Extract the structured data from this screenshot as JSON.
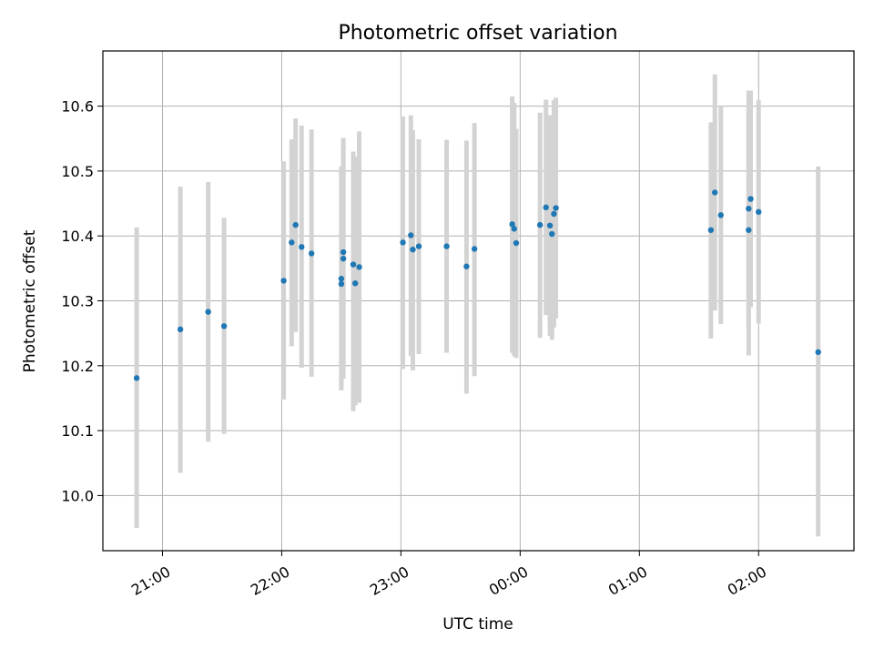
{
  "chart_data": {
    "type": "scatter",
    "title": "Photometric offset variation",
    "xlabel": "UTC time",
    "ylabel": "Photometric offset",
    "xlim": [
      "20:30",
      "26:48"
    ],
    "ylim": [
      9.915,
      10.685
    ],
    "grid": true,
    "x_ticks": [
      {
        "value": "21:00",
        "label": "21:00"
      },
      {
        "value": "22:00",
        "label": "22:00"
      },
      {
        "value": "23:00",
        "label": "23:00"
      },
      {
        "value": "24:00",
        "label": "00:00"
      },
      {
        "value": "25:00",
        "label": "01:00"
      },
      {
        "value": "26:00",
        "label": "02:00"
      }
    ],
    "y_ticks": [
      {
        "value": 10.0,
        "label": "10.0"
      },
      {
        "value": 10.1,
        "label": "10.1"
      },
      {
        "value": 10.2,
        "label": "10.2"
      },
      {
        "value": 10.3,
        "label": "10.3"
      },
      {
        "value": 10.4,
        "label": "10.4"
      },
      {
        "value": 10.5,
        "label": "10.5"
      },
      {
        "value": 10.6,
        "label": "10.6"
      }
    ],
    "colors": {
      "point": "#1f77b4",
      "errorbar": "#d3d3d3",
      "grid": "#b0b0b0"
    },
    "points": [
      {
        "t": "20:47",
        "y": 10.181,
        "lo": 9.95,
        "hi": 10.413
      },
      {
        "t": "21:09",
        "y": 10.256,
        "lo": 10.035,
        "hi": 10.476
      },
      {
        "t": "21:23",
        "y": 10.283,
        "lo": 10.083,
        "hi": 10.483
      },
      {
        "t": "21:31",
        "y": 10.261,
        "lo": 10.095,
        "hi": 10.428
      },
      {
        "t": "22:01",
        "y": 10.331,
        "lo": 10.148,
        "hi": 10.515
      },
      {
        "t": "22:05",
        "y": 10.39,
        "lo": 10.23,
        "hi": 10.549
      },
      {
        "t": "22:07",
        "y": 10.417,
        "lo": 10.252,
        "hi": 10.581
      },
      {
        "t": "22:10",
        "y": 10.383,
        "lo": 10.197,
        "hi": 10.57
      },
      {
        "t": "22:15",
        "y": 10.373,
        "lo": 10.183,
        "hi": 10.564
      },
      {
        "t": "22:30",
        "y": 10.326,
        "lo": 10.167,
        "hi": 10.507
      },
      {
        "t": "22:30",
        "y": 10.334,
        "lo": 10.162,
        "hi": 10.505
      },
      {
        "t": "22:31",
        "y": 10.375,
        "lo": 10.2,
        "hi": 10.551
      },
      {
        "t": "22:31",
        "y": 10.365,
        "lo": 10.18,
        "hi": 10.548
      },
      {
        "t": "22:36",
        "y": 10.356,
        "lo": 10.13,
        "hi": 10.53
      },
      {
        "t": "22:37",
        "y": 10.327,
        "lo": 10.139,
        "hi": 10.522
      },
      {
        "t": "22:39",
        "y": 10.352,
        "lo": 10.143,
        "hi": 10.561
      },
      {
        "t": "23:01",
        "y": 10.39,
        "lo": 10.195,
        "hi": 10.584
      },
      {
        "t": "23:05",
        "y": 10.401,
        "lo": 10.215,
        "hi": 10.586
      },
      {
        "t": "23:06",
        "y": 10.379,
        "lo": 10.193,
        "hi": 10.563
      },
      {
        "t": "23:09",
        "y": 10.384,
        "lo": 10.218,
        "hi": 10.549
      },
      {
        "t": "23:23",
        "y": 10.384,
        "lo": 10.22,
        "hi": 10.548
      },
      {
        "t": "23:33",
        "y": 10.353,
        "lo": 10.157,
        "hi": 10.547
      },
      {
        "t": "23:37",
        "y": 10.38,
        "lo": 10.184,
        "hi": 10.574
      },
      {
        "t": "23:56",
        "y": 10.418,
        "lo": 10.22,
        "hi": 10.615
      },
      {
        "t": "23:57",
        "y": 10.411,
        "lo": 10.215,
        "hi": 10.605
      },
      {
        "t": "23:58",
        "y": 10.389,
        "lo": 10.212,
        "hi": 10.565
      },
      {
        "t": "24:10",
        "y": 10.417,
        "lo": 10.243,
        "hi": 10.59
      },
      {
        "t": "24:13",
        "y": 10.444,
        "lo": 10.278,
        "hi": 10.61
      },
      {
        "t": "24:15",
        "y": 10.416,
        "lo": 10.246,
        "hi": 10.586
      },
      {
        "t": "24:16",
        "y": 10.403,
        "lo": 10.24,
        "hi": 10.57
      },
      {
        "t": "24:17",
        "y": 10.434,
        "lo": 10.259,
        "hi": 10.609
      },
      {
        "t": "24:18",
        "y": 10.443,
        "lo": 10.273,
        "hi": 10.613
      },
      {
        "t": "25:36",
        "y": 10.409,
        "lo": 10.242,
        "hi": 10.575
      },
      {
        "t": "25:38",
        "y": 10.467,
        "lo": 10.285,
        "hi": 10.649
      },
      {
        "t": "25:41",
        "y": 10.432,
        "lo": 10.264,
        "hi": 10.6
      },
      {
        "t": "25:55",
        "y": 10.409,
        "lo": 10.216,
        "hi": 10.602
      },
      {
        "t": "25:55",
        "y": 10.442,
        "lo": 10.26,
        "hi": 10.624
      },
      {
        "t": "25:56",
        "y": 10.457,
        "lo": 10.29,
        "hi": 10.624
      },
      {
        "t": "26:00",
        "y": 10.437,
        "lo": 10.265,
        "hi": 10.609
      },
      {
        "t": "26:30",
        "y": 10.221,
        "lo": 9.937,
        "hi": 10.507
      }
    ]
  }
}
